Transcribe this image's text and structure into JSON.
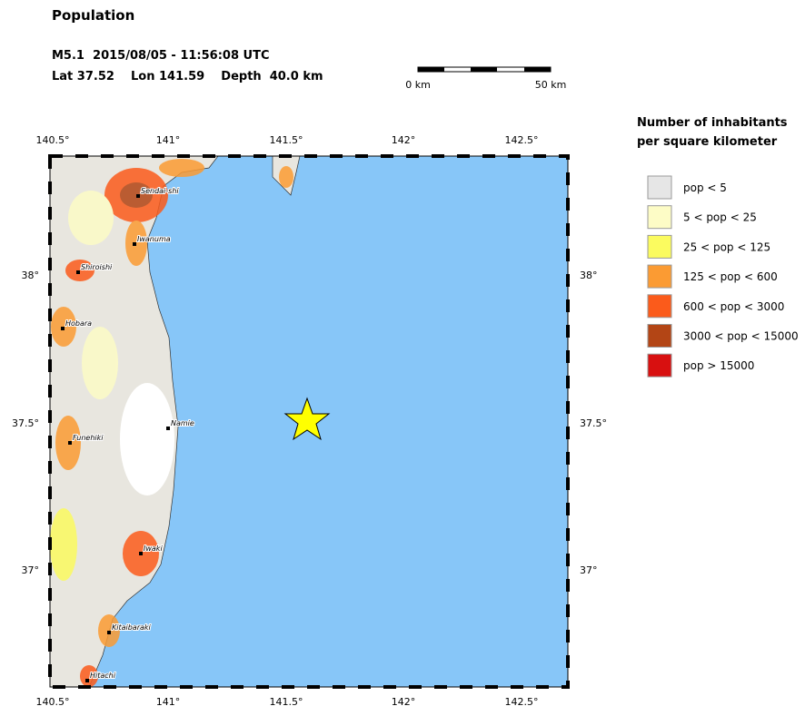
{
  "header": {
    "title": "Population",
    "event": "M5.1  2015/08/05 - 11:56:08 UTC",
    "location": "Lat 37.52    Lon 141.59    Depth  40.0 km"
  },
  "scale_bar": {
    "start": "0 km",
    "end": "50 km"
  },
  "map": {
    "lon_ticks": [
      "140.5°",
      "141°",
      "141.5°",
      "142°",
      "142.5°"
    ],
    "lat_ticks": [
      "38°",
      "37.5°",
      "37°"
    ],
    "cities": [
      "Sendai-shi",
      "Iwanuma",
      "Shiroishi",
      "Hobara",
      "Namie",
      "Funehiki",
      "Iwaki",
      "Kitaibaraki",
      "Hitachi"
    ]
  },
  "legend": {
    "title_line1": "Number of inhabitants",
    "title_line2": "per square kilometer",
    "items": [
      {
        "label": "pop < 5",
        "color": "#e6e6e6"
      },
      {
        "label": "5 < pop < 25",
        "color": "#fdfcc6"
      },
      {
        "label": "25 < pop < 125",
        "color": "#fbfb5f"
      },
      {
        "label": "125 < pop < 600",
        "color": "#fb9b33"
      },
      {
        "label": "600 < pop < 3000",
        "color": "#fb5b1b"
      },
      {
        "label": "3000 < pop < 15000",
        "color": "#b34515"
      },
      {
        "label": "pop > 15000",
        "color": "#d81010"
      }
    ]
  }
}
